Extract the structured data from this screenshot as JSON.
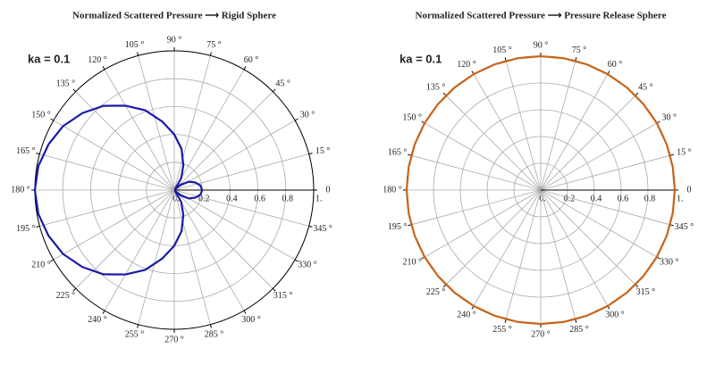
{
  "chart_data": [
    {
      "type": "polar",
      "title": "Normalized Scattered Pressure ⟶ Rigid Sphere",
      "annotation": "ka = 0.1",
      "color": "#1a1aa6",
      "title_color": "#1a1aa6",
      "x": [
        0,
        10,
        20,
        30,
        40,
        50,
        60,
        70,
        80,
        90,
        100,
        110,
        120,
        130,
        140,
        150,
        160,
        170,
        180,
        190,
        200,
        210,
        220,
        230,
        240,
        250,
        260,
        270,
        280,
        290,
        300,
        310,
        320,
        330,
        340,
        350,
        360
      ],
      "values": [
        0.2,
        0.19,
        0.16,
        0.12,
        0.06,
        0.01,
        0.1,
        0.19,
        0.3,
        0.4,
        0.5,
        0.61,
        0.7,
        0.79,
        0.86,
        0.92,
        0.96,
        0.99,
        1,
        0.99,
        0.96,
        0.92,
        0.86,
        0.79,
        0.7,
        0.61,
        0.5,
        0.4,
        0.3,
        0.19,
        0.1,
        0.01,
        0.06,
        0.12,
        0.16,
        0.19,
        0.2
      ],
      "rlim": [
        0,
        1
      ],
      "rticks": [
        {
          "value": 0,
          "label": "0."
        },
        0.2,
        0.4,
        0.6,
        0.8,
        {
          "value": 1,
          "label": "1."
        }
      ],
      "thetaticks": [
        0,
        {
          "value": 15,
          "label": "15 °"
        },
        {
          "value": 30,
          "label": "30 °"
        },
        {
          "value": 45,
          "label": "45 °"
        },
        {
          "value": 60,
          "label": "60 °"
        },
        {
          "value": 75,
          "label": "75 °"
        },
        {
          "value": 90,
          "label": "90 °"
        },
        {
          "value": 105,
          "label": "105 °"
        },
        {
          "value": 120,
          "label": "120 °"
        },
        {
          "value": 135,
          "label": "135 °"
        },
        {
          "value": 150,
          "label": "150 °"
        },
        {
          "value": 165,
          "label": "165 °"
        },
        {
          "value": 180,
          "label": "180 °"
        },
        {
          "value": 195,
          "label": "195 °"
        },
        {
          "value": 210,
          "label": "210 °"
        },
        {
          "value": 225,
          "label": "225 °"
        },
        {
          "value": 240,
          "label": "240 °"
        },
        {
          "value": 255,
          "label": "255 °"
        },
        {
          "value": 270,
          "label": "270 °"
        },
        {
          "value": 285,
          "label": "285 °"
        },
        {
          "value": 300,
          "label": "300 °"
        },
        {
          "value": 315,
          "label": "315 °"
        },
        {
          "value": 330,
          "label": "330 °"
        },
        {
          "value": 345,
          "label": "345 °"
        }
      ],
      "grid": true
    },
    {
      "type": "polar",
      "title": "Normalized Scattered Pressure ⟶ Pressure Release Sphere",
      "annotation": "ka = 0.1",
      "color": "#c8651b",
      "title_color": "#b8621b",
      "x": [
        0,
        10,
        20,
        30,
        40,
        50,
        60,
        70,
        80,
        90,
        100,
        110,
        120,
        130,
        140,
        150,
        160,
        170,
        180,
        190,
        200,
        210,
        220,
        230,
        240,
        250,
        260,
        270,
        280,
        290,
        300,
        310,
        320,
        330,
        340,
        350,
        360
      ],
      "values": [
        1,
        1,
        1,
        1,
        1,
        1,
        1,
        1,
        1,
        1,
        1,
        1,
        1,
        1,
        1,
        1,
        1,
        1,
        1,
        1,
        1,
        1,
        1,
        1,
        1,
        1,
        1,
        1,
        1,
        1,
        1,
        1,
        1,
        1,
        1,
        1,
        1
      ],
      "rlim": [
        0,
        1
      ],
      "rticks": [
        {
          "value": 0,
          "label": "0."
        },
        0.2,
        0.4,
        0.6,
        0.8,
        {
          "value": 1,
          "label": "1."
        }
      ],
      "thetaticks": [
        0,
        {
          "value": 15,
          "label": "15 °"
        },
        {
          "value": 30,
          "label": "30 °"
        },
        {
          "value": 45,
          "label": "45 °"
        },
        {
          "value": 60,
          "label": "60 °"
        },
        {
          "value": 75,
          "label": "75 °"
        },
        {
          "value": 90,
          "label": "90 °"
        },
        {
          "value": 105,
          "label": "105 °"
        },
        {
          "value": 120,
          "label": "120 °"
        },
        {
          "value": 135,
          "label": "135 °"
        },
        {
          "value": 150,
          "label": "150 °"
        },
        {
          "value": 165,
          "label": "165 °"
        },
        {
          "value": 180,
          "label": "180 °"
        },
        {
          "value": 195,
          "label": "195 °"
        },
        {
          "value": 210,
          "label": "210 °"
        },
        {
          "value": 225,
          "label": "225 °"
        },
        {
          "value": 240,
          "label": "240 °"
        },
        {
          "value": 255,
          "label": "255 °"
        },
        {
          "value": 270,
          "label": "270 °"
        },
        {
          "value": 285,
          "label": "285 °"
        },
        {
          "value": 300,
          "label": "300 °"
        },
        {
          "value": 315,
          "label": "315 °"
        },
        {
          "value": 330,
          "label": "330 °"
        },
        {
          "value": 345,
          "label": "345 °"
        }
      ],
      "grid": true
    }
  ]
}
